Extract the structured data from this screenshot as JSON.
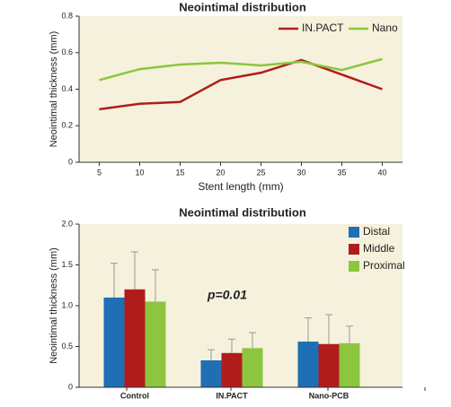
{
  "chart_data": [
    {
      "type": "line",
      "title": "Neointimal distribution",
      "x_label": "Stent length (mm)",
      "y_label": "Neointimal thickness (mm)",
      "x": [
        5,
        10,
        15,
        20,
        25,
        30,
        35,
        40
      ],
      "series": [
        {
          "name": "IN.PACT",
          "color": "#b01c1c",
          "values": [
            0.29,
            0.32,
            0.33,
            0.45,
            0.49,
            0.56,
            0.48,
            0.4
          ]
        },
        {
          "name": "Nano",
          "color": "#8cc63e",
          "values": [
            0.45,
            0.51,
            0.535,
            0.545,
            0.53,
            0.55,
            0.505,
            0.565
          ]
        }
      ],
      "xlim": [
        2.5,
        42.5
      ],
      "xticks": [
        5,
        10,
        15,
        20,
        25,
        30,
        35,
        40
      ],
      "ylim": [
        0,
        0.8
      ],
      "yticks": [
        0,
        0.2,
        0.4,
        0.6,
        0.8
      ],
      "legend": "upper right",
      "background": "#f5f1dc"
    },
    {
      "type": "bar",
      "title": "Neointimal distribution",
      "y_label": "Neointimal thickness (mm)",
      "categories": [
        "Control",
        "IN.PACT",
        "Nano-PCB"
      ],
      "series": [
        {
          "name": "Distal",
          "color": "#1f6fb5",
          "values": [
            1.1,
            0.33,
            0.56
          ],
          "errors": [
            0.42,
            0.13,
            0.29
          ]
        },
        {
          "name": "Middle",
          "color": "#b01c1c",
          "values": [
            1.2,
            0.42,
            0.53
          ],
          "errors": [
            0.46,
            0.17,
            0.36
          ]
        },
        {
          "name": "Proximal",
          "color": "#8cc63e",
          "values": [
            1.05,
            0.48,
            0.54
          ],
          "errors": [
            0.39,
            0.19,
            0.21
          ]
        }
      ],
      "annotation": "p=0.01",
      "ylim": [
        0,
        2
      ],
      "yticks": [
        0,
        0.5,
        {
          "value": 1,
          "label": "1.0"
        },
        1.5,
        {
          "value": 2,
          "label": "2.0"
        }
      ],
      "legend": "upper right",
      "background": "#f5f1dc"
    }
  ]
}
